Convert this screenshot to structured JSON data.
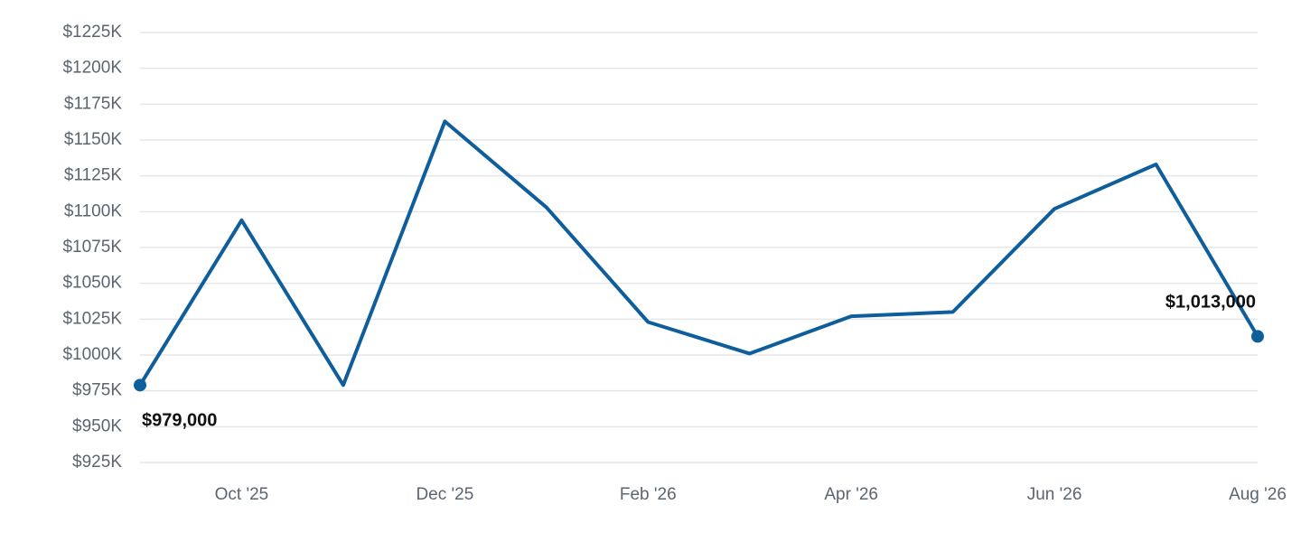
{
  "chart_data": {
    "type": "line",
    "categories": [
      null,
      "Oct '25",
      null,
      "Dec '25",
      null,
      "Feb '26",
      null,
      "Apr '26",
      null,
      "Jun '26",
      null,
      "Aug '26"
    ],
    "series": [
      {
        "color": "#0f5e9c",
        "values": [
          979000,
          1094000,
          979000,
          1163000,
          1103000,
          1023000,
          1001000,
          1027000,
          1030000,
          1102000,
          1133000,
          1013000
        ],
        "value_labels": [
          "$979,000",
          null,
          null,
          null,
          null,
          null,
          null,
          null,
          null,
          null,
          null,
          "$1,013,000"
        ]
      }
    ],
    "ylim": [
      925000,
      1225000
    ],
    "yticks": [
      {
        "value": 925000,
        "label": "$925K"
      },
      {
        "value": 950000,
        "label": "$950K"
      },
      {
        "value": 975000,
        "label": "$975K"
      },
      {
        "value": 1000000,
        "label": "$1000K"
      },
      {
        "value": 1025000,
        "label": "$1025K"
      },
      {
        "value": 1050000,
        "label": "$1050K"
      },
      {
        "value": 1075000,
        "label": "$1075K"
      },
      {
        "value": 1100000,
        "label": "$1100K"
      },
      {
        "value": 1125000,
        "label": "$1125K"
      },
      {
        "value": 1150000,
        "label": "$1150K"
      },
      {
        "value": 1175000,
        "label": "$1175K"
      },
      {
        "value": 1200000,
        "label": "$1200K"
      },
      {
        "value": 1225000,
        "label": "$1225K"
      }
    ],
    "grid": true
  }
}
